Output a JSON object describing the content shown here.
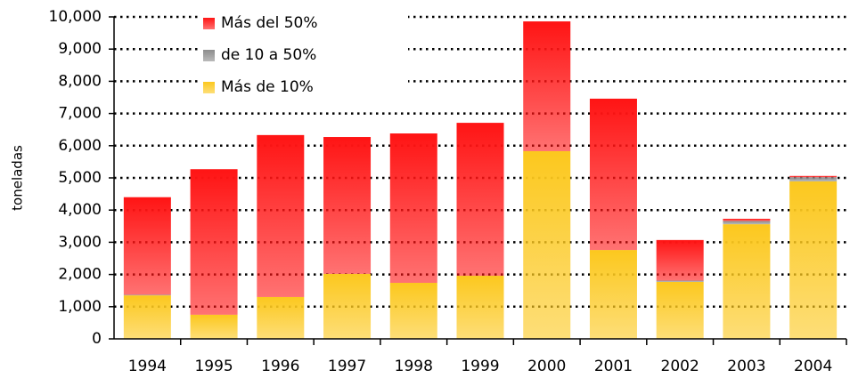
{
  "chart_data": {
    "type": "bar",
    "stacked": true,
    "ylabel": "toneladas",
    "categories": [
      "1994",
      "1995",
      "1996",
      "1997",
      "1998",
      "1999",
      "2000",
      "2001",
      "2002",
      "2003",
      "2004"
    ],
    "series": [
      {
        "name": "Más de 10%",
        "color": "#fcc81e",
        "values": [
          1350,
          750,
          1300,
          2020,
          1740,
          1960,
          5830,
          2760,
          1770,
          3560,
          4890
        ]
      },
      {
        "name": "de 10 a 50%",
        "color": "#8c8c8c",
        "values": [
          20,
          0,
          0,
          0,
          0,
          0,
          0,
          0,
          40,
          100,
          130
        ]
      },
      {
        "name": "Más del 50%",
        "color": "#ff1414",
        "values": [
          3030,
          4520,
          5030,
          4250,
          4640,
          4750,
          4030,
          4700,
          1260,
          70,
          40
        ]
      }
    ],
    "legend_order": [
      2,
      1,
      0
    ],
    "legend": "upper left",
    "ylim": [
      0,
      10000
    ],
    "yticks": [
      0,
      {
        "value": 1000,
        "label": "1,000"
      },
      {
        "value": 2000,
        "label": "2,000"
      },
      {
        "value": 3000,
        "label": "3,000"
      },
      {
        "value": 4000,
        "label": "4,000"
      },
      {
        "value": 5000,
        "label": "5,000"
      },
      {
        "value": 6000,
        "label": "6,000"
      },
      {
        "value": 7000,
        "label": "7,000"
      },
      {
        "value": 8000,
        "label": "8,000"
      },
      {
        "value": 9000,
        "label": "9,000"
      },
      {
        "value": 10000,
        "label": "10,000"
      }
    ],
    "grid": true
  }
}
